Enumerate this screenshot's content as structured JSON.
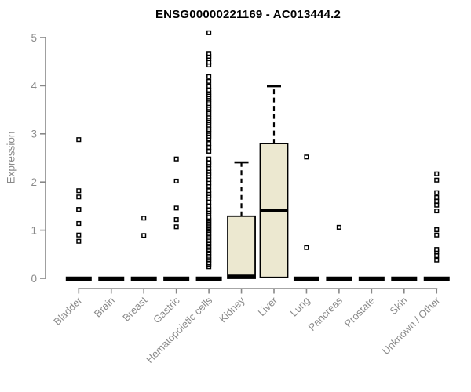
{
  "chart_data": {
    "type": "boxplot",
    "title": "ENSG00000221169 - AC013444.2",
    "ylabel": "Expression",
    "xlabel": "",
    "ylim": [
      0,
      5
    ],
    "yticks": [
      0,
      1,
      2,
      3,
      4,
      5
    ],
    "grid": false,
    "categories": [
      "Bladder",
      "Brain",
      "Breast",
      "Gastric",
      "Hematopoietic cells",
      "Kidney",
      "Liver",
      "Lung",
      "Pancreas",
      "Prostate",
      "Skin",
      "Unknown / Other"
    ],
    "series": [
      {
        "name": "Bladder",
        "q1": 0,
        "median": 0,
        "q3": 0,
        "whisker_low": 0,
        "whisker_high": 0,
        "outliers": [
          0.77,
          0.9,
          1.14,
          1.43,
          1.43,
          1.69,
          1.82,
          2.88
        ]
      },
      {
        "name": "Brain",
        "q1": 0,
        "median": 0,
        "q3": 0,
        "whisker_low": 0,
        "whisker_high": 0,
        "outliers": []
      },
      {
        "name": "Breast",
        "q1": 0,
        "median": 0,
        "q3": 0,
        "whisker_low": 0,
        "whisker_high": 0,
        "outliers": [
          0.89,
          1.25
        ]
      },
      {
        "name": "Gastric",
        "q1": 0,
        "median": 0,
        "q3": 0,
        "whisker_low": 0,
        "whisker_high": 0,
        "outliers": [
          1.07,
          1.22,
          1.46,
          2.02,
          2.48
        ]
      },
      {
        "name": "Hematopoietic cells",
        "q1": 0,
        "median": 0,
        "q3": 0,
        "whisker_low": 0,
        "whisker_high": 0,
        "outliers": [
          0.24,
          0.29,
          0.32,
          0.36,
          0.39,
          0.43,
          0.46,
          0.5,
          0.53,
          0.57,
          0.6,
          0.64,
          0.67,
          0.71,
          0.74,
          0.78,
          0.81,
          0.85,
          0.88,
          0.92,
          0.95,
          0.99,
          1.02,
          1.06,
          1.09,
          1.13,
          1.16,
          1.2,
          1.23,
          1.27,
          1.34,
          1.38,
          1.43,
          1.5,
          1.58,
          1.66,
          1.71,
          1.76,
          1.82,
          1.91,
          1.98,
          2.05,
          2.12,
          2.17,
          2.22,
          2.28,
          2.36,
          2.4,
          2.48,
          2.64,
          2.72,
          2.8,
          2.9,
          2.95,
          3.01,
          3.05,
          3.09,
          3.14,
          3.18,
          3.23,
          3.27,
          3.32,
          3.36,
          3.41,
          3.45,
          3.5,
          3.54,
          3.59,
          3.63,
          3.68,
          3.72,
          3.77,
          3.81,
          3.86,
          3.91,
          3.99,
          4.09,
          4.19,
          4.43,
          4.49,
          4.56,
          4.61,
          4.67,
          5.1
        ]
      },
      {
        "name": "Kidney",
        "q1": 0,
        "median": 0.04,
        "q3": 1.29,
        "whisker_low": 0,
        "whisker_high": 2.41,
        "outliers": []
      },
      {
        "name": "Liver",
        "q1": 0.02,
        "median": 1.41,
        "q3": 2.8,
        "whisker_low": 0.02,
        "whisker_high": 3.99,
        "outliers": []
      },
      {
        "name": "Lung",
        "q1": 0,
        "median": 0,
        "q3": 0,
        "whisker_low": 0,
        "whisker_high": 0,
        "outliers": [
          0.64,
          2.52
        ]
      },
      {
        "name": "Pancreas",
        "q1": 0,
        "median": 0,
        "q3": 0,
        "whisker_low": 0,
        "whisker_high": 0,
        "outliers": [
          1.06
        ]
      },
      {
        "name": "Prostate",
        "q1": 0,
        "median": 0,
        "q3": 0,
        "whisker_low": 0,
        "whisker_high": 0,
        "outliers": []
      },
      {
        "name": "Skin",
        "q1": 0,
        "median": 0,
        "q3": 0,
        "whisker_low": 0,
        "whisker_high": 0,
        "outliers": []
      },
      {
        "name": "Unknown / Other",
        "q1": 0,
        "median": 0,
        "q3": 0,
        "whisker_low": 0,
        "whisker_high": 0,
        "outliers": [
          0.38,
          0.47,
          0.55,
          0.6,
          0.9,
          1.01,
          1.4,
          1.52,
          1.6,
          1.68,
          1.78,
          2.04,
          2.17
        ]
      }
    ],
    "colors": {
      "box_fill": "#ece8d0",
      "box_stroke": "#000000",
      "median": "#000000",
      "whisker": "#000000",
      "outlier": "#000000",
      "axis": "#888888",
      "tick_text": "#8a8a8a",
      "title_text": "#000000",
      "background": "#ffffff"
    }
  }
}
